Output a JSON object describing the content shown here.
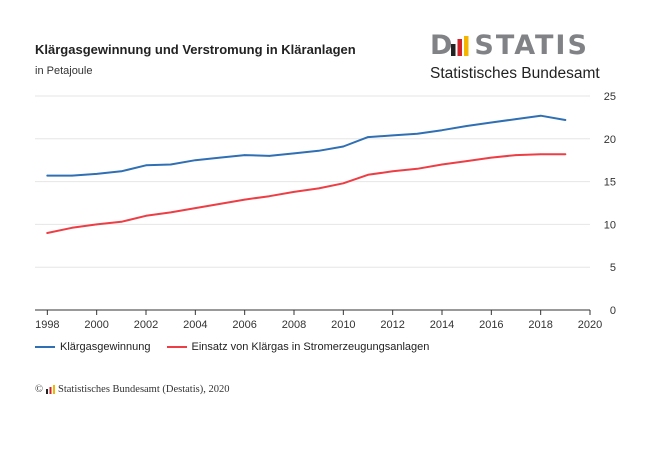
{
  "header": {
    "title": "Klärgasgewinnung und Verstromung in Kläranlagen",
    "subtitle": "in Petajoule"
  },
  "logo": {
    "wordmark_left": "D",
    "wordmark_right": "STATIS",
    "tagline": "Statistisches Bundesamt"
  },
  "footer": {
    "copyright_symbol": "©",
    "source": "Statistisches Bundesamt (Destatis), 2020"
  },
  "colors": {
    "blue": "#2f6fb4",
    "red": "#ee3e45",
    "grid": "#e6e6e6",
    "axis": "#333333",
    "logo_gray": "#808285",
    "logo_black": "#222222",
    "logo_red": "#d2232a",
    "logo_gold": "#f4b400"
  },
  "chart_data": {
    "type": "line",
    "x": [
      1998,
      1999,
      2000,
      2001,
      2002,
      2003,
      2004,
      2005,
      2006,
      2007,
      2008,
      2009,
      2010,
      2011,
      2012,
      2013,
      2014,
      2015,
      2016,
      2017,
      2018,
      2019
    ],
    "series": [
      {
        "name": "Klärgasgewinnung",
        "color": "#2f6fb4",
        "values": [
          15.7,
          15.7,
          15.9,
          16.2,
          16.9,
          17.0,
          17.5,
          17.8,
          18.1,
          18.0,
          18.3,
          18.6,
          19.1,
          20.2,
          20.4,
          20.6,
          21.0,
          21.5,
          21.9,
          22.3,
          22.7,
          22.2
        ]
      },
      {
        "name": "Einsatz von Klärgas in Stromerzeugungsanlagen",
        "color": "#ee3e45",
        "values": [
          9.0,
          9.6,
          10.0,
          10.3,
          11.0,
          11.4,
          11.9,
          12.4,
          12.9,
          13.3,
          13.8,
          14.2,
          14.8,
          15.8,
          16.2,
          16.5,
          17.0,
          17.4,
          17.8,
          18.1,
          18.2,
          18.2
        ]
      }
    ],
    "xlim": [
      1997.5,
      2020
    ],
    "ylim": [
      0,
      25
    ],
    "x_ticks": [
      1998,
      2000,
      2002,
      2004,
      2006,
      2008,
      2010,
      2012,
      2014,
      2016,
      2018,
      2020
    ],
    "y_ticks": [
      0,
      5,
      10,
      15,
      20,
      25
    ],
    "y_axis_side": "right",
    "grid": "horizontal",
    "legend": "bottom-left"
  }
}
